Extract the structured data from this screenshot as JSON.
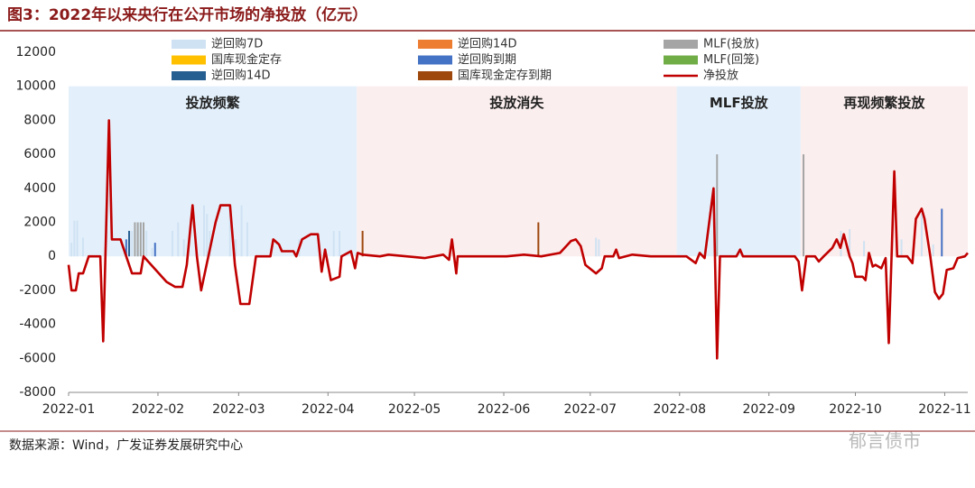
{
  "chart_data": {
    "type": "combo",
    "title": "图3：2022年以来央行在公开市场的净投放（亿元）",
    "source": "数据来源：Wind，广发证券发展研究中心",
    "watermark": "郁言债市",
    "xlim": [
      0,
      312
    ],
    "xticks": [
      {
        "value": 0,
        "label": "2022-01"
      },
      {
        "value": 31,
        "label": "2022-02"
      },
      {
        "value": 59,
        "label": "2022-03"
      },
      {
        "value": 90,
        "label": "2022-04"
      },
      {
        "value": 120,
        "label": "2022-05"
      },
      {
        "value": 151,
        "label": "2022-06"
      },
      {
        "value": 181,
        "label": "2022-07"
      },
      {
        "value": 212,
        "label": "2022-08"
      },
      {
        "value": 243,
        "label": "2022-09"
      },
      {
        "value": 273,
        "label": "2022-10"
      },
      {
        "value": 304,
        "label": "2022-11"
      }
    ],
    "ylim": [
      -8000,
      12000
    ],
    "yticks": [
      -8000,
      -6000,
      -4000,
      -2000,
      0,
      2000,
      4000,
      6000,
      8000,
      10000,
      12000
    ],
    "grid": false,
    "regions": [
      {
        "label": "投放频繁",
        "start": 0,
        "end": 100,
        "color": "#e3f0fb"
      },
      {
        "label": "投放消失",
        "start": 100,
        "end": 211,
        "color": "#fbeeee"
      },
      {
        "label": "MLF投放",
        "start": 211,
        "end": 254,
        "color": "#e3f0fb"
      },
      {
        "label": "再现频繁投放",
        "start": 254,
        "end": 312,
        "color": "#fbeeee"
      }
    ],
    "series": [
      {
        "name": "逆回购7D",
        "type": "bar",
        "color": "#cfe2f3",
        "x": [
          1,
          2,
          3,
          5,
          22,
          24,
          27,
          29,
          36,
          38,
          40,
          47,
          48,
          49,
          56,
          58,
          60,
          62,
          80,
          92,
          94,
          183,
          184,
          268,
          271,
          276,
          289,
          296,
          300
        ],
        "values": [
          800,
          2100,
          2100,
          1100,
          1500,
          2000,
          1500,
          500,
          1500,
          2000,
          1000,
          3000,
          2500,
          1500,
          3000,
          1000,
          3000,
          2000,
          1000,
          1500,
          1500,
          1100,
          1000,
          1500,
          1600,
          900,
          1000,
          2500,
          700
        ]
      },
      {
        "name": "逆回购14D",
        "type": "bar",
        "color": "#ed7d31",
        "x": [],
        "values": []
      },
      {
        "name": "MLF(投放)",
        "type": "bar",
        "color": "#a5a5a5",
        "x": [
          23,
          24,
          25,
          26,
          225,
          255
        ],
        "values": [
          2000,
          2000,
          2000,
          2000,
          6000,
          6000
        ]
      },
      {
        "name": "国库现金定存",
        "type": "bar",
        "color": "#ffc000",
        "x": [],
        "values": []
      },
      {
        "name": "逆回购到期",
        "type": "bar",
        "color": "#4472c4",
        "x": [
          20,
          30,
          303
        ],
        "values": [
          1000,
          800,
          2800
        ]
      },
      {
        "name": "MLF(回笼)",
        "type": "bar",
        "color": "#70ad47",
        "x": [],
        "values": []
      },
      {
        "name": "逆回购14D",
        "type": "bar",
        "color": "#255e91",
        "x": [
          21
        ],
        "values": [
          1500
        ]
      },
      {
        "name": "国库现金定存到期",
        "type": "bar",
        "color": "#9e480e",
        "x": [
          102,
          163
        ],
        "values": [
          1500,
          2000
        ]
      },
      {
        "name": "净投放",
        "type": "line",
        "color": "#c00000",
        "x": [
          0,
          1,
          2.5,
          3.5,
          5,
          7,
          11,
          12,
          14,
          15,
          18,
          22,
          25,
          26,
          34,
          37,
          39.5,
          41,
          43,
          44.5,
          46,
          51,
          52.7,
          56,
          57.7,
          59.6,
          62.7,
          65,
          70,
          71,
          73,
          74,
          78,
          79,
          81,
          84,
          86.5,
          87.8,
          89,
          91,
          94,
          94.7,
          98,
          99.4,
          100.3,
          102,
          108,
          111,
          123.5,
          130,
          132,
          133,
          134.5,
          135,
          152,
          158,
          164,
          170.5,
          174.3,
          176,
          177.7,
          179.3,
          183,
          185,
          186,
          189,
          190,
          191,
          195.6,
          202,
          208,
          214.4,
          217.6,
          219,
          220.7,
          223.8,
          225,
          226,
          231.7,
          233,
          234,
          252,
          253.3,
          254.5,
          256,
          259,
          260.3,
          262,
          265,
          266.5,
          267.8,
          269,
          271,
          272,
          273,
          275.5,
          276.5,
          277.7,
          279,
          280,
          282,
          283.5,
          284.6,
          286.5,
          287.5,
          291,
          292.8,
          294,
          296,
          297,
          299,
          300.6,
          302,
          303.4,
          304.7,
          307,
          308.5,
          311,
          312
        ],
        "values": [
          -500,
          -2000,
          -2000,
          -1000,
          -1000,
          0,
          0,
          -5000,
          8000,
          1000,
          1000,
          -1000,
          -1000,
          0,
          -1500,
          -1800,
          -1800,
          -500,
          3000,
          0,
          -2000,
          2000,
          3000,
          3000,
          -500,
          -2800,
          -2800,
          0,
          0,
          1000,
          700,
          300,
          300,
          0,
          1000,
          1300,
          1300,
          -900,
          400,
          -1400,
          -1200,
          0,
          300,
          -700,
          200,
          100,
          0,
          100,
          -100,
          100,
          -200,
          1000,
          -1000,
          0,
          0,
          100,
          0,
          200,
          900,
          1000,
          600,
          -500,
          -1000,
          -700,
          0,
          0,
          400,
          -100,
          100,
          0,
          0,
          0,
          -400,
          200,
          -100,
          4000,
          -6000,
          0,
          0,
          400,
          0,
          0,
          -300,
          -2000,
          0,
          0,
          -300,
          0,
          500,
          1000,
          500,
          1300,
          0,
          -400,
          -1200,
          -1200,
          -1400,
          200,
          -600,
          -500,
          -700,
          -100,
          -5100,
          5000,
          0,
          0,
          -400,
          2200,
          2800,
          2200,
          0,
          -2100,
          -2500,
          -2200,
          -800,
          -700,
          -100,
          0,
          200
        ]
      }
    ]
  }
}
